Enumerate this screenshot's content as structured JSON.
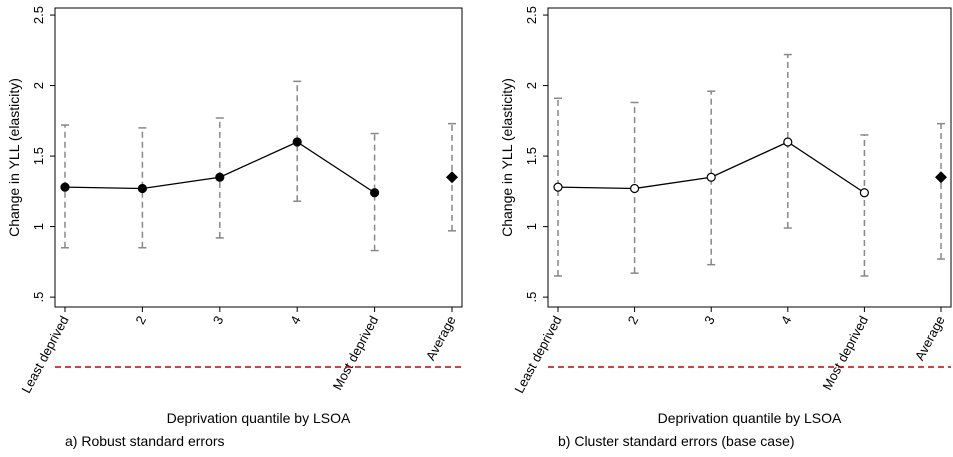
{
  "chart_data": [
    {
      "type": "errorbar",
      "caption": "a) Robust standard errors",
      "x_label": "Deprivation quantile by LSOA",
      "y_label": "Change in YLL (elasticity)",
      "categories": [
        "Least deprived",
        "2",
        "3",
        "4",
        "Most deprived",
        "Average"
      ],
      "values": [
        1.28,
        1.27,
        1.35,
        1.6,
        1.24,
        1.35
      ],
      "ci_low": [
        0.85,
        0.85,
        0.92,
        1.18,
        0.83,
        0.97
      ],
      "ci_high": [
        1.72,
        1.7,
        1.77,
        2.03,
        1.66,
        1.73
      ],
      "markers": [
        "circle",
        "circle",
        "circle",
        "circle",
        "circle",
        "diamond"
      ],
      "marker_fill": "#000000",
      "color": "#000000",
      "ci_color": "#888888",
      "reference_color": "#cc0000",
      "ylim": [
        0.43,
        2.55
      ],
      "yticks": [
        {
          "value": 0.5,
          "label": ".5"
        },
        1,
        1.5,
        2,
        2.5
      ]
    },
    {
      "type": "errorbar",
      "caption": "b) Cluster standard errors (base case)",
      "x_label": "Deprivation quantile by LSOA",
      "y_label": "Change in YLL (elasticity)",
      "categories": [
        "Least deprived",
        "2",
        "3",
        "4",
        "Most deprived",
        "Average"
      ],
      "values": [
        1.28,
        1.27,
        1.35,
        1.6,
        1.24,
        1.35
      ],
      "ci_low": [
        0.65,
        0.67,
        0.73,
        0.99,
        0.65,
        0.77
      ],
      "ci_high": [
        1.91,
        1.88,
        1.96,
        2.22,
        1.65,
        1.73
      ],
      "markers": [
        "circle",
        "circle",
        "circle",
        "circle",
        "circle",
        "diamond"
      ],
      "marker_fill": "#ffffff",
      "color": "#000000",
      "ci_color": "#888888",
      "reference_color": "#cc0000",
      "ylim": [
        0.43,
        2.55
      ],
      "yticks": [
        {
          "value": 0.5,
          "label": ".5"
        },
        1,
        1.5,
        2,
        2.5
      ]
    }
  ]
}
